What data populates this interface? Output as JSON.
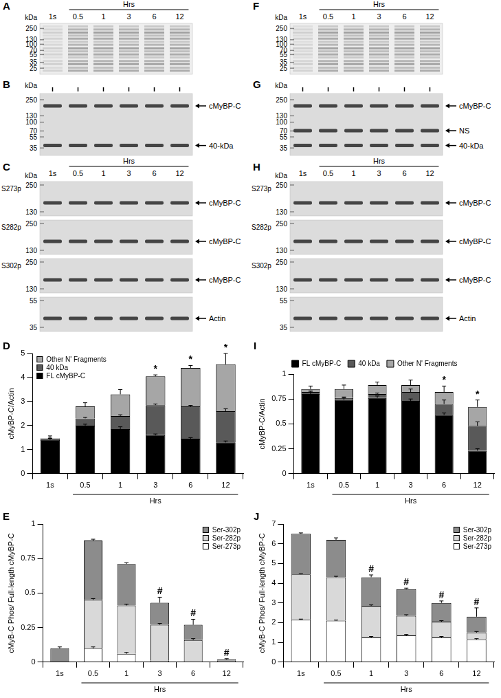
{
  "blots": [
    {
      "panel": "A",
      "kDa_label": "kDa",
      "xlabel": "Hrs",
      "lanes": [
        "1s",
        "0.5",
        "1",
        "3",
        "6",
        "12"
      ],
      "rows": [
        {
          "markers": [
            250,
            130,
            100,
            70,
            55,
            35,
            25
          ]
        }
      ]
    },
    {
      "panel": "B",
      "kDa_label": "kDa",
      "rows": [
        {
          "markers": [
            250,
            130,
            100,
            70,
            55,
            35
          ],
          "arrows": [
            "cMyBP-C",
            "40-kDa"
          ]
        }
      ]
    },
    {
      "panel": "C",
      "kDa_label": "kDa",
      "xlabel": "Hrs",
      "lanes": [
        "1s",
        "0.5",
        "1",
        "3",
        "6",
        "12"
      ],
      "rows": [
        {
          "label": "S273p",
          "markers": [
            250,
            130
          ],
          "arrows": [
            "cMyBP-C"
          ]
        },
        {
          "label": "S282p",
          "markers": [
            250,
            130
          ],
          "arrows": [
            "cMyBP-C"
          ]
        },
        {
          "label": "S302p",
          "markers": [
            250,
            130
          ],
          "arrows": [
            "cMyBP-C"
          ]
        },
        {
          "markers": [
            55,
            35
          ],
          "arrows": [
            "Actin"
          ]
        }
      ]
    },
    {
      "panel": "F",
      "kDa_label": "kDa",
      "xlabel": "Hrs",
      "lanes": [
        "1s",
        "0.5",
        "1",
        "3",
        "6",
        "12"
      ],
      "rows": [
        {
          "markers": [
            250,
            130,
            100,
            70,
            55,
            35,
            25
          ]
        }
      ]
    },
    {
      "panel": "G",
      "kDa_label": "kDa",
      "rows": [
        {
          "markers": [
            250,
            130,
            100,
            70,
            55,
            35
          ],
          "arrows": [
            "cMyBP-C",
            "NS",
            "40-kDa"
          ]
        }
      ]
    },
    {
      "panel": "H",
      "kDa_label": "kDa",
      "xlabel": "Hrs",
      "lanes": [
        "1s",
        "0.5",
        "1",
        "3",
        "6",
        "12"
      ],
      "rows": [
        {
          "label": "S273p",
          "markers": [
            250,
            130
          ],
          "arrows": [
            "cMyBP-C"
          ]
        },
        {
          "label": "S282p",
          "markers": [
            250,
            130
          ],
          "arrows": [
            "cMyBP-C"
          ]
        },
        {
          "label": "S302p",
          "markers": [
            250,
            130
          ],
          "arrows": [
            "cMyBP-C"
          ]
        },
        {
          "markers": [
            55,
            35
          ],
          "arrows": [
            "Actin"
          ]
        }
      ]
    }
  ],
  "chart_data": [
    {
      "type": "bar",
      "panel": "D",
      "stacked": true,
      "grid": false,
      "legend": "upper left",
      "categories": [
        "1s",
        "0.5",
        "1",
        "3",
        "6",
        "12"
      ],
      "xlabel": "Hrs",
      "ylabel": "cMyBP-C/Actin",
      "ylim": [
        0,
        5
      ],
      "yticks": [
        0,
        1,
        2,
        3,
        4,
        5
      ],
      "series": [
        {
          "name": "FL cMyBP-C",
          "color": "#000000",
          "values": [
            1.4,
            2.0,
            1.85,
            1.6,
            1.45,
            1.3
          ],
          "errors": [
            0.08,
            0.06,
            0.1,
            0.05,
            0.05,
            0.06
          ]
        },
        {
          "name": "40 kDa",
          "color": "#595959",
          "values": [
            0.05,
            0.3,
            0.55,
            1.25,
            1.35,
            1.3
          ],
          "errors": [
            0.02,
            0.04,
            0.05,
            0.05,
            0.04,
            0.1
          ]
        },
        {
          "name": "Other N' Fragments",
          "color": "#a6a6a6",
          "values": [
            0.02,
            0.5,
            0.9,
            1.2,
            1.6,
            1.95
          ],
          "errors": [
            0.1,
            0.15,
            0.2,
            0.06,
            0.1,
            0.45
          ]
        }
      ],
      "significance": [
        null,
        null,
        null,
        "*",
        "*",
        "*"
      ]
    },
    {
      "type": "bar",
      "panel": "E",
      "stacked": true,
      "grid": false,
      "legend": "upper right",
      "categories": [
        "1s",
        "0.5",
        "1",
        "3",
        "6",
        "12"
      ],
      "xlabel": "Hrs",
      "ylabel": "cMyB-C Phos/ Full-length cMyBP-C",
      "ylim": [
        0,
        1
      ],
      "yticks": [
        0,
        0.25,
        0.5,
        0.75,
        1
      ],
      "series": [
        {
          "name": "Ser-273p",
          "color": "#ffffff",
          "values": [
            0,
            0.1,
            0.06,
            0.01,
            0,
            0
          ],
          "errors": [
            null,
            0.01,
            0.01,
            null,
            null,
            null
          ]
        },
        {
          "name": "Ser-282p",
          "color": "#d9d9d9",
          "values": [
            0,
            0.35,
            0.35,
            0.26,
            0.16,
            0.01
          ],
          "errors": [
            null,
            0.01,
            0.01,
            0.01,
            0.01,
            null
          ]
        },
        {
          "name": "Ser-302p",
          "color": "#8c8c8c",
          "values": [
            0.1,
            0.43,
            0.3,
            0.16,
            0.11,
            0.01
          ],
          "errors": [
            0.01,
            0.01,
            0.01,
            0.04,
            0.04,
            0.005
          ]
        }
      ],
      "significance": [
        null,
        null,
        null,
        "#",
        "#",
        "#"
      ]
    },
    {
      "type": "bar",
      "panel": "I",
      "stacked": true,
      "grid": false,
      "legend": "top",
      "categories": [
        "1s",
        "0.5",
        "1",
        "3",
        "6",
        "12"
      ],
      "xlabel": "Hrs",
      "ylabel": "cMyBP-C/Actin",
      "ylim": [
        0,
        1
      ],
      "yticks": [
        0,
        0.25,
        0.5,
        0.75,
        1
      ],
      "series": [
        {
          "name": "FL cMyBP-C",
          "color": "#000000",
          "values": [
            0.8,
            0.74,
            0.76,
            0.73,
            0.59,
            0.23
          ],
          "errors": [
            0.02,
            0.02,
            0.02,
            0.02,
            0.02,
            0.02
          ]
        },
        {
          "name": "40 kDa",
          "color": "#595959",
          "values": [
            0.02,
            0.02,
            0.04,
            0.09,
            0.11,
            0.25
          ],
          "errors": [
            0.01,
            0.01,
            0.01,
            0.03,
            0.04,
            0.04
          ]
        },
        {
          "name": "Other N' Fragments",
          "color": "#a6a6a6",
          "values": [
            0.03,
            0.09,
            0.09,
            0.07,
            0.12,
            0.19
          ],
          "errors": [
            0.03,
            0.04,
            0.03,
            0.05,
            0.06,
            0.07
          ]
        }
      ],
      "significance": [
        null,
        null,
        null,
        null,
        "*",
        "*"
      ]
    },
    {
      "type": "bar",
      "panel": "J",
      "stacked": true,
      "grid": false,
      "legend": "upper right",
      "categories": [
        "1s",
        "0.5",
        "1",
        "3",
        "6",
        "12"
      ],
      "xlabel": "Hrs",
      "ylabel": "cMyB-C Phos/ Full-length cMyBP-C",
      "ylim": [
        0,
        7
      ],
      "yticks": [
        0,
        1,
        2,
        3,
        4,
        5,
        6,
        7
      ],
      "series": [
        {
          "name": "Ser-273p",
          "color": "#ffffff",
          "values": [
            2.15,
            2.1,
            1.25,
            1.35,
            1.25,
            1.15
          ],
          "errors": [
            0.03,
            0.03,
            0.05,
            0.05,
            0.05,
            0.04
          ]
        },
        {
          "name": "Ser-282p",
          "color": "#d9d9d9",
          "values": [
            2.3,
            2.2,
            1.6,
            1.0,
            0.8,
            0.35
          ],
          "errors": [
            0.03,
            0.05,
            0.05,
            0.05,
            0.05,
            0.05
          ]
        },
        {
          "name": "Ser-302p",
          "color": "#8c8c8c",
          "values": [
            2.05,
            1.9,
            1.45,
            1.35,
            0.95,
            0.8
          ],
          "errors": [
            0.05,
            0.1,
            0.12,
            0.05,
            0.1,
            0.45
          ]
        }
      ],
      "significance": [
        null,
        null,
        "#",
        "#",
        "#",
        "#"
      ]
    }
  ]
}
